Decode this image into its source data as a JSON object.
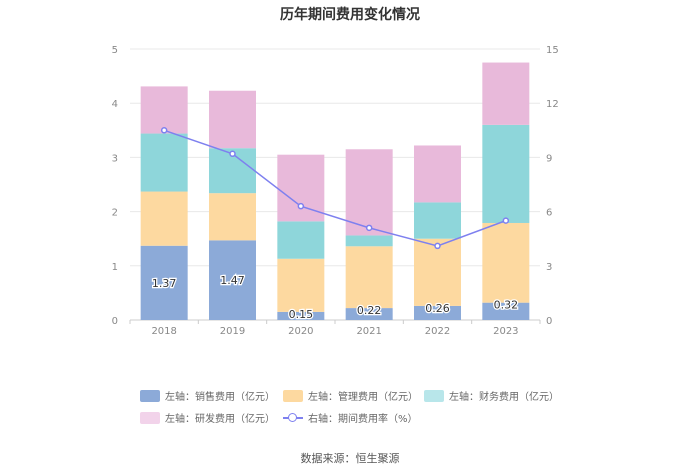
{
  "chart_data": {
    "type": "bar",
    "title": "历年期间费用变化情况",
    "categories": [
      "2018",
      "2019",
      "2020",
      "2021",
      "2022",
      "2023"
    ],
    "stacked": true,
    "left_axis": {
      "ylim": [
        0,
        5
      ],
      "ticks": [
        "0",
        "1",
        "2",
        "3",
        "4",
        "5"
      ]
    },
    "right_axis": {
      "ylim": [
        0,
        15
      ],
      "ticks": [
        "0",
        "3",
        "6",
        "9",
        "12",
        "15"
      ]
    },
    "series": [
      {
        "name": "左轴：销售费用（亿元）",
        "axis": "left",
        "color": "#8caad8",
        "values": [
          1.37,
          1.47,
          0.15,
          0.22,
          0.26,
          0.32
        ],
        "labels": [
          "1.37",
          "1.47",
          "0.15",
          "0.22",
          "0.26",
          "0.32"
        ]
      },
      {
        "name": "左轴：管理费用（亿元）",
        "axis": "left",
        "color": "#fdd9a0",
        "values": [
          1.0,
          0.87,
          0.98,
          1.14,
          1.24,
          1.47
        ]
      },
      {
        "name": "左轴：财务费用（亿元）",
        "axis": "left",
        "color": "#8ed6da",
        "values": [
          1.07,
          0.83,
          0.69,
          0.2,
          0.67,
          1.81
        ]
      },
      {
        "name": "左轴：研发费用（亿元）",
        "axis": "left",
        "color": "#e8b9da",
        "values": [
          0.87,
          1.06,
          1.23,
          1.59,
          1.05,
          1.15
        ]
      },
      {
        "name": "右轴：期间费用率（%）",
        "axis": "right",
        "type": "line",
        "color": "#7e80ef",
        "values": [
          10.5,
          9.2,
          6.3,
          5.1,
          4.1,
          5.5
        ]
      }
    ],
    "grid": true,
    "legend_position": "bottom"
  },
  "legend": [
    {
      "label": "左轴：销售费用（亿元）",
      "color": "#8caad8",
      "kind": "box"
    },
    {
      "label": "左轴：管理费用（亿元）",
      "color": "#fdd9a0",
      "kind": "box"
    },
    {
      "label": "左轴：财务费用（亿元）",
      "color": "#b8e6ea",
      "kind": "box"
    },
    {
      "label": "左轴：研发费用（亿元）",
      "color": "#f2d3ea",
      "kind": "box"
    },
    {
      "label": "右轴：期间费用率（%）",
      "color": "#7e80ef",
      "kind": "line"
    }
  ],
  "source": "数据来源：恒生聚源"
}
